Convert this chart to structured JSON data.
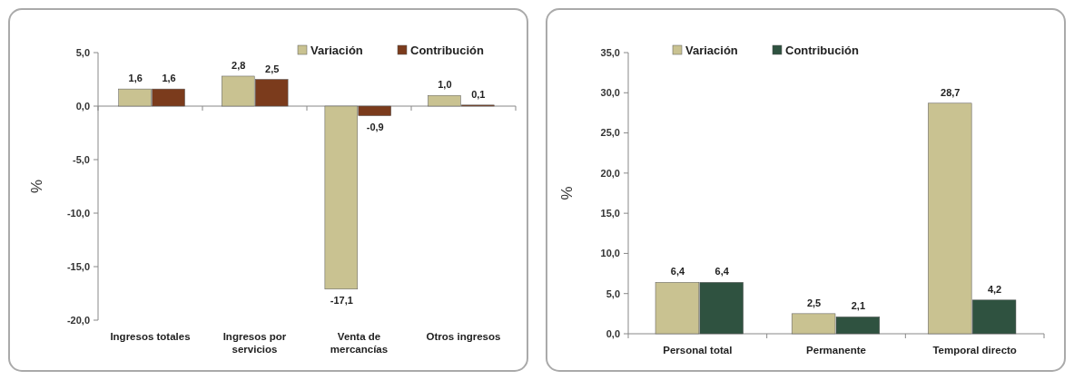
{
  "chart_data": [
    {
      "type": "bar",
      "ylabel": "%",
      "categories": [
        "Ingresos totales",
        "Ingresos por servicios",
        "Venta de mercancías",
        "Otros ingresos"
      ],
      "ylim": [
        -20,
        5
      ],
      "yticks": [
        {
          "value": 5,
          "label": "5,0"
        },
        {
          "value": 0,
          "label": "0,0"
        },
        {
          "value": -5,
          "label": "-5,0"
        },
        {
          "value": -10,
          "label": "-10,0"
        },
        {
          "value": -15,
          "label": "-15,0"
        },
        {
          "value": -20,
          "label": "-20,0"
        }
      ],
      "legend": "top right",
      "series": [
        {
          "name": "Variación",
          "color": "#c9c291",
          "values": [
            1.6,
            2.8,
            -17.1,
            1.0
          ],
          "value_labels": [
            "1,6",
            "2,8",
            "-17,1",
            "1,0"
          ]
        },
        {
          "name": "Contribución",
          "color": "#7b3b1c",
          "values": [
            1.6,
            2.5,
            -0.9,
            0.1
          ],
          "value_labels": [
            "1,6",
            "2,5",
            "-0,9",
            "0,1"
          ]
        }
      ]
    },
    {
      "type": "bar",
      "ylabel": "%",
      "categories": [
        "Personal total",
        "Permanente",
        "Temporal directo"
      ],
      "ylim": [
        0,
        35
      ],
      "yticks": [
        {
          "value": 0,
          "label": "0,0"
        },
        {
          "value": 5,
          "label": "5,0"
        },
        {
          "value": 10,
          "label": "10,0"
        },
        {
          "value": 15,
          "label": "15,0"
        },
        {
          "value": 20,
          "label": "20,0"
        },
        {
          "value": 25,
          "label": "25,0"
        },
        {
          "value": 30,
          "label": "30,0"
        },
        {
          "value": 35,
          "label": "35,0"
        }
      ],
      "legend": "top",
      "series": [
        {
          "name": "Variación",
          "color": "#c9c291",
          "values": [
            6.4,
            2.5,
            28.7
          ],
          "value_labels": [
            "6,4",
            "2,5",
            "28,7"
          ]
        },
        {
          "name": "Contribución",
          "color": "#2f5240",
          "values": [
            6.4,
            2.1,
            4.2
          ],
          "value_labels": [
            "6,4",
            "2,1",
            "4,2"
          ]
        }
      ]
    }
  ]
}
